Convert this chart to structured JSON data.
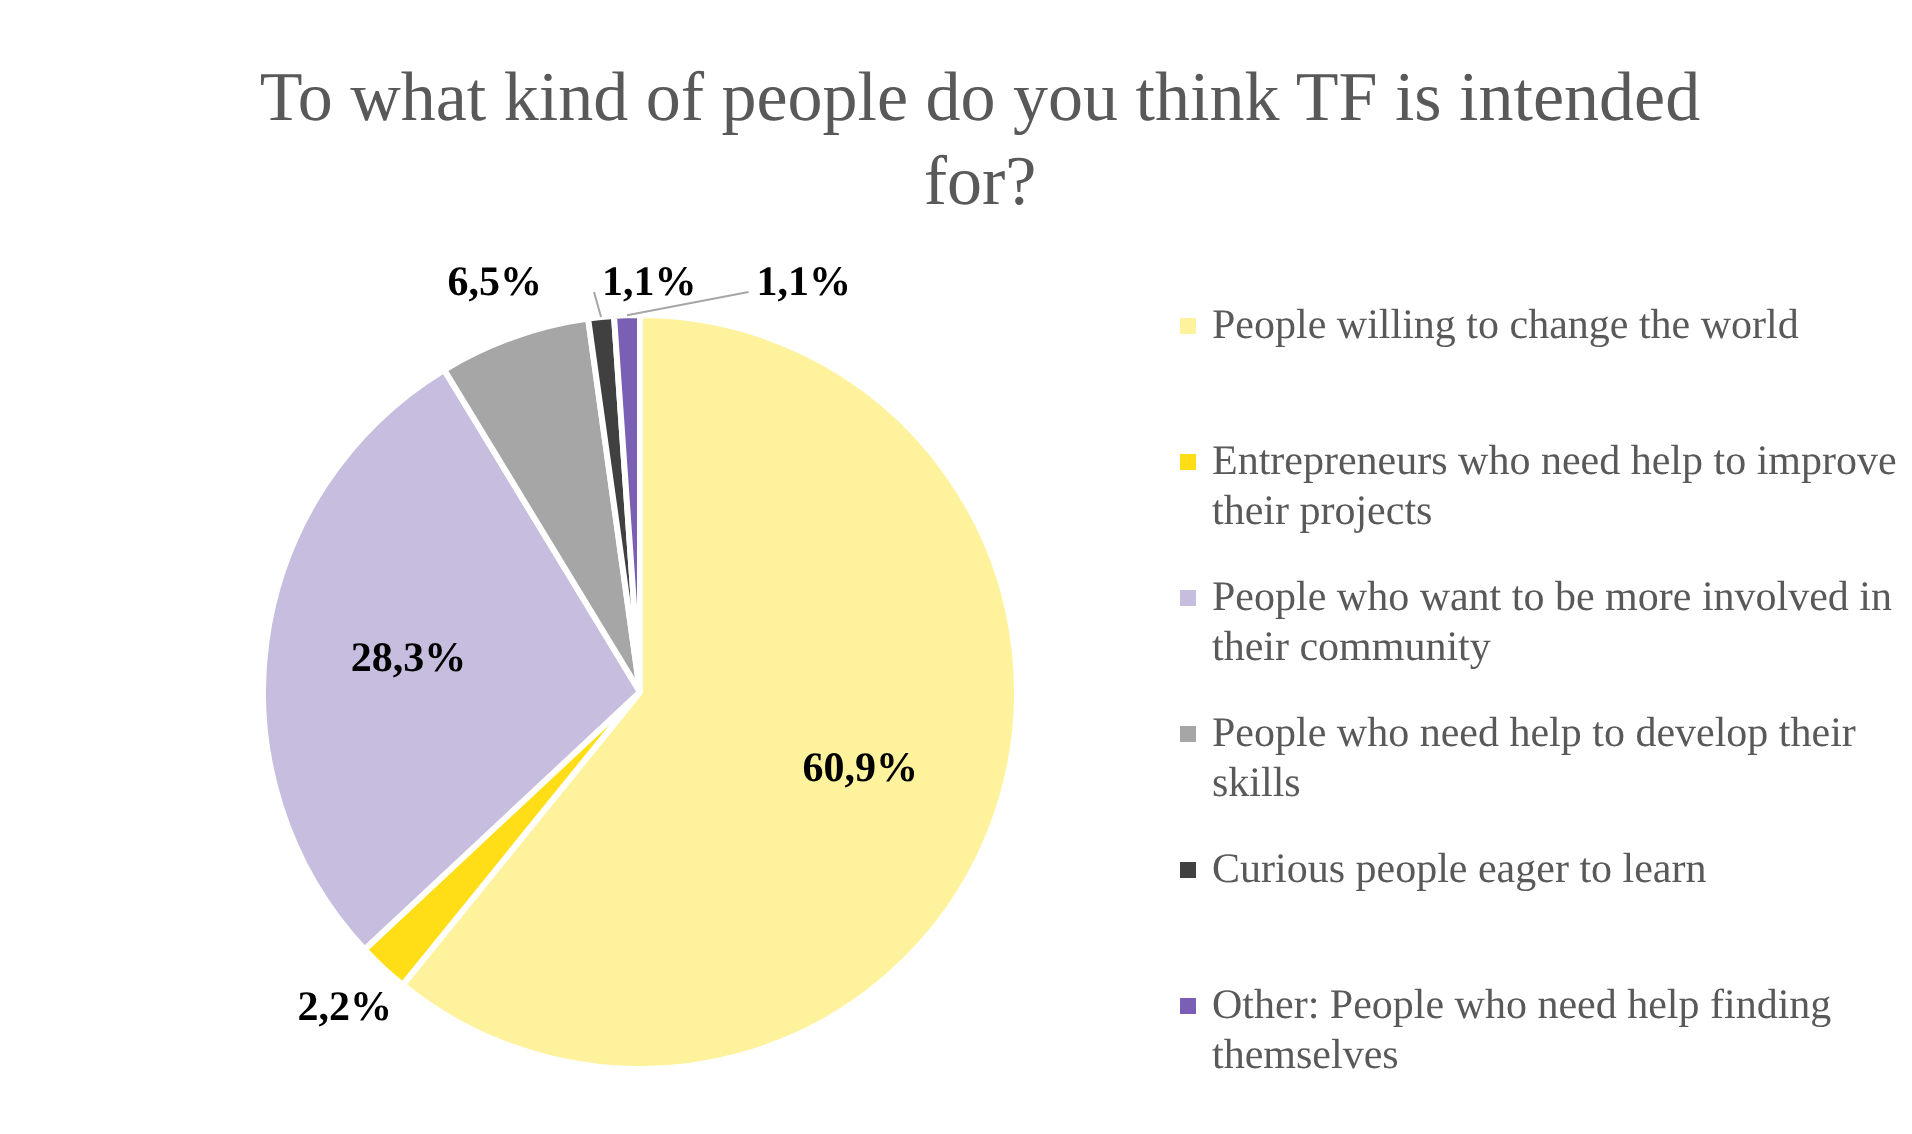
{
  "chart_data": {
    "type": "pie",
    "title": "To what kind of people do you think TF is intended for?",
    "categories": [
      "People willing to change the world",
      "Entrepreneurs who need help to improve their projects",
      "People who want to be more involved in their community",
      "People who need help to develop their skills",
      "Curious people eager to learn",
      "Other: People who need help finding themselves"
    ],
    "values": [
      60.9,
      2.2,
      28.3,
      6.5,
      1.1,
      1.1
    ],
    "colors": [
      "#fff29c",
      "#ffde17",
      "#c6bddf",
      "#a6a6a6",
      "#404040",
      "#7b5fb5"
    ],
    "value_labels": [
      "60,9%",
      "2,2%",
      "28,3%",
      "6,5%",
      "1,1%",
      "1,1%"
    ],
    "legend": "right"
  }
}
